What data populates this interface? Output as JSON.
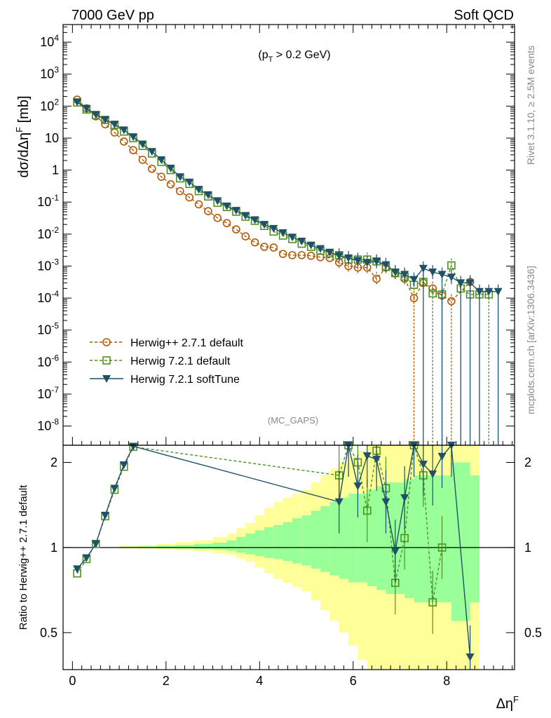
{
  "header": {
    "left": "7000 GeV pp",
    "right": "Soft QCD"
  },
  "side": {
    "rivet": "Rivet 3.1.10, ≥ 2.5M events",
    "mcplots": "mcplots.cern.ch [arXiv:1306.3436]"
  },
  "plot": {
    "cut_label": "(p_T > 0.2 GeV)",
    "analysis": "(MC_GAPS)"
  },
  "chart_data": {
    "type": "line",
    "title": "",
    "xlabel": "Δη^F",
    "ylabel": "dσ/dΔη^F [mb]",
    "ratio_ylabel": "Ratio to Herwig++ 2.7.1 default",
    "xlim": [
      -0.2,
      9.45
    ],
    "ylim_log10": [
      -8.6,
      4.55
    ],
    "ratio_ylim": [
      0.37,
      2.3
    ],
    "x_ticks": [
      "0",
      "2",
      "4",
      "6",
      "8"
    ],
    "y_ticks": [
      {
        "exp": 4,
        "label": "10^4"
      },
      {
        "exp": 3,
        "label": "10^3"
      },
      {
        "exp": 2,
        "label": "10^2"
      },
      {
        "exp": 1,
        "label": "10"
      },
      {
        "exp": 0,
        "label": "1"
      },
      {
        "exp": -1,
        "label": "10^-1"
      },
      {
        "exp": -2,
        "label": "10^-2"
      },
      {
        "exp": -3,
        "label": "10^-3"
      },
      {
        "exp": -4,
        "label": "10^-4"
      },
      {
        "exp": -5,
        "label": "10^-5"
      },
      {
        "exp": -6,
        "label": "10^-6"
      },
      {
        "exp": -7,
        "label": "10^-7"
      },
      {
        "exp": -8,
        "label": "10^-8"
      }
    ],
    "ratio_ticks": [
      {
        "v": 2,
        "label": "2"
      },
      {
        "v": 1,
        "label": "1"
      },
      {
        "v": 0.5,
        "label": "0.5"
      }
    ],
    "series": [
      {
        "name": "Herwig++ 2.7.1 default",
        "color": "#b35806",
        "marker": "circle",
        "style": "dashed",
        "x": [
          0.1,
          0.3,
          0.5,
          0.7,
          0.9,
          1.1,
          1.3,
          1.5,
          1.7,
          1.9,
          2.1,
          2.3,
          2.5,
          2.7,
          2.9,
          3.1,
          3.3,
          3.5,
          3.7,
          3.9,
          4.1,
          4.3,
          4.5,
          4.7,
          4.9,
          5.1,
          5.3,
          5.5,
          5.7,
          5.9,
          6.1,
          6.3,
          6.5,
          6.7,
          6.9,
          7.1,
          7.3,
          7.5,
          7.7,
          7.9,
          8.1,
          8.5
        ],
        "y": [
          160,
          85,
          48,
          27,
          15,
          7.8,
          4.2,
          2.1,
          1.1,
          0.62,
          0.36,
          0.22,
          0.14,
          0.085,
          0.052,
          0.032,
          0.022,
          0.014,
          0.0085,
          0.0055,
          0.004,
          0.0038,
          0.0024,
          0.0022,
          0.0022,
          0.0021,
          0.0019,
          0.0018,
          0.0013,
          0.001,
          0.0009,
          0.0009,
          0.0004,
          0.0009,
          0.0006,
          0.0004,
          0.0001,
          0.0003,
          0.0002,
          0.00012,
          8e-05,
          0.00032
        ]
      },
      {
        "name": "Herwig 7.2.1 default",
        "color": "#4d9221",
        "marker": "square-open",
        "style": "dashed",
        "x": [
          0.1,
          0.3,
          0.5,
          0.7,
          0.9,
          1.1,
          1.3,
          1.5,
          1.7,
          1.9,
          2.1,
          2.3,
          2.5,
          2.7,
          2.9,
          3.1,
          3.3,
          3.5,
          3.7,
          3.9,
          4.1,
          4.3,
          4.5,
          4.7,
          4.9,
          5.1,
          5.3,
          5.5,
          5.7,
          5.9,
          6.1,
          6.3,
          6.5,
          6.7,
          6.9,
          7.1,
          7.3,
          7.5,
          7.7,
          7.9,
          8.1,
          8.3,
          8.5,
          8.7,
          8.9
        ],
        "y": [
          130,
          78,
          52,
          37,
          26,
          16,
          10,
          5.7,
          3.3,
          1.8,
          1.0,
          0.55,
          0.37,
          0.22,
          0.15,
          0.095,
          0.07,
          0.05,
          0.035,
          0.026,
          0.018,
          0.012,
          0.009,
          0.007,
          0.005,
          0.004,
          0.003,
          0.0025,
          0.0022,
          0.0016,
          0.0016,
          0.0016,
          0.0014,
          0.00095,
          0.0006,
          0.00047,
          0.00026,
          0.00032,
          0.00014,
          0.00013,
          0.00105,
          0.0002,
          0.00013,
          0.00013,
          0.00013
        ]
      },
      {
        "name": "Herwig 7.2.1 softTune",
        "color": "#1f5168",
        "marker": "triangle-down",
        "style": "solid",
        "x": [
          0.1,
          0.3,
          0.5,
          0.7,
          0.9,
          1.1,
          1.3,
          1.5,
          1.7,
          1.9,
          2.1,
          2.3,
          2.5,
          2.7,
          2.9,
          3.1,
          3.3,
          3.5,
          3.7,
          3.9,
          4.1,
          4.3,
          4.5,
          4.7,
          4.9,
          5.1,
          5.3,
          5.5,
          5.7,
          5.9,
          6.1,
          6.3,
          6.5,
          6.7,
          6.9,
          7.1,
          7.3,
          7.5,
          7.7,
          7.9,
          8.1,
          8.3,
          8.5,
          8.7,
          8.9,
          9.1
        ],
        "y": [
          135,
          85,
          55,
          38,
          27,
          18,
          11,
          6.5,
          3.8,
          2.1,
          1.15,
          0.62,
          0.42,
          0.25,
          0.17,
          0.11,
          0.075,
          0.055,
          0.038,
          0.028,
          0.02,
          0.015,
          0.011,
          0.008,
          0.006,
          0.0045,
          0.0035,
          0.0027,
          0.0021,
          0.0018,
          0.0015,
          0.0013,
          0.0014,
          0.0011,
          0.00065,
          0.00055,
          0.00038,
          0.00085,
          0.00065,
          0.00055,
          0.00045,
          0.0003,
          0.0003,
          0.00016,
          0.00016,
          0.00016
        ]
      }
    ],
    "ratio_series": [
      {
        "name": "Herwig 7.2.1 default",
        "x": [
          0.1,
          0.3,
          0.5,
          0.7,
          0.9,
          1.1,
          1.3,
          5.7,
          5.9,
          6.1,
          6.3,
          6.5,
          6.7,
          6.9,
          7.1,
          7.3,
          7.5,
          7.7,
          7.9
        ],
        "y": [
          0.81,
          0.91,
          1.03,
          1.29,
          1.6,
          1.93,
          2.27,
          1.8,
          2.4,
          2.0,
          1.35,
          2.2,
          1.62,
          0.75,
          1.08,
          2.3,
          1.8,
          0.64,
          1.0
        ]
      },
      {
        "name": "Herwig 7.2.1 softTune",
        "x": [
          0.1,
          0.3,
          0.5,
          0.7,
          0.9,
          1.1,
          1.3,
          5.7,
          5.9,
          6.1,
          6.3,
          6.5,
          6.7,
          6.9,
          7.1,
          7.3,
          7.5,
          7.7,
          7.9,
          8.1,
          8.5
        ],
        "y": [
          0.84,
          0.92,
          1.03,
          1.3,
          1.62,
          1.96,
          2.28,
          1.45,
          2.3,
          1.65,
          2.11,
          2.05,
          1.45,
          0.97,
          1.5,
          2.7,
          1.97,
          1.82,
          2.1,
          2.5,
          0.41
        ]
      }
    ],
    "band_x_edges": [
      1.0,
      1.4,
      1.8,
      2.2,
      2.6,
      3.0,
      3.3,
      3.5,
      3.7,
      3.9,
      4.1,
      4.3,
      4.5,
      4.7,
      4.9,
      5.1,
      5.3,
      5.5,
      5.7,
      5.9,
      6.1,
      6.3,
      6.5,
      6.7,
      6.9,
      7.1,
      7.3,
      7.5,
      7.7,
      7.9,
      8.1,
      8.3,
      8.5,
      8.7
    ],
    "band_inner": [
      0.008,
      0.01,
      0.015,
      0.02,
      0.03,
      0.04,
      0.06,
      0.09,
      0.12,
      0.15,
      0.18,
      0.2,
      0.23,
      0.27,
      0.3,
      0.35,
      0.4,
      0.45,
      0.5,
      0.55,
      0.55,
      0.6,
      0.65,
      0.7,
      0.7,
      0.75,
      0.8,
      0.8,
      0.8,
      0.8,
      1.0,
      1.0,
      0.8
    ],
    "band_outer": [
      0.015,
      0.02,
      0.03,
      0.045,
      0.06,
      0.09,
      0.12,
      0.17,
      0.22,
      0.3,
      0.38,
      0.45,
      0.5,
      0.55,
      0.6,
      0.7,
      0.8,
      0.9,
      1.0,
      1.1,
      1.2,
      1.3,
      1.4,
      1.5,
      1.6,
      1.6,
      1.6,
      1.6,
      1.6,
      1.6,
      1.6,
      1.6,
      1.6
    ]
  }
}
